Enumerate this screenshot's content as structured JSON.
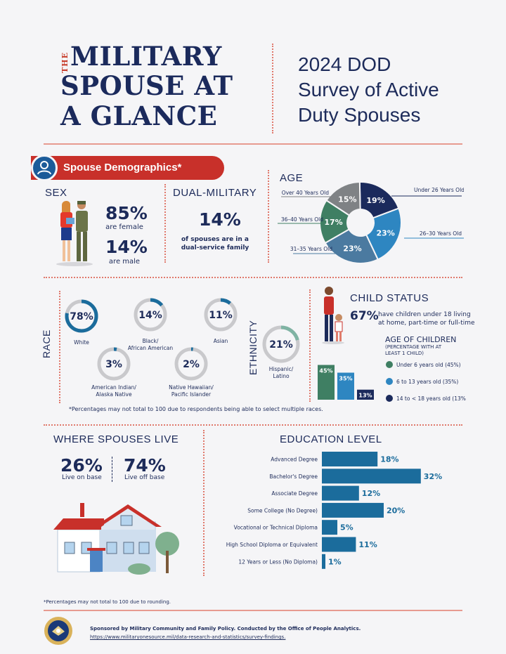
{
  "header": {
    "the": "THE",
    "title_lines": [
      "MILITARY",
      "SPOUSE AT",
      "A GLANCE"
    ],
    "survey_lines": [
      "2024 DOD",
      "Survey of Active",
      "Duty Spouses"
    ]
  },
  "demographics": {
    "section_title": "Spouse Demographics*",
    "sex": {
      "label": "SEX",
      "female_pct": "85%",
      "female_text": "are female",
      "male_pct": "14%",
      "male_text": "are male"
    },
    "dual_military": {
      "label": "DUAL-MILITARY",
      "pct": "14%",
      "text_line1": "of spouses are in a",
      "text_line2": "dual-service family"
    },
    "age": {
      "label": "AGE"
    }
  },
  "race": {
    "label": "RACE",
    "footnote": "*Percentages may not total to 100 due to respondents being able to select multiple races."
  },
  "ethnicity": {
    "label": "ETHNICITY"
  },
  "child_status": {
    "label": "CHILD STATUS",
    "pct": "67%",
    "text_line1": "have children under 18 living",
    "text_line2": "at home, part-time or full-time",
    "age_title": "AGE OF CHILDREN",
    "age_subtitle_line1": "(PERCENTAGE WITH AT",
    "age_subtitle_line2": "LEAST 1 CHILD)"
  },
  "where_live": {
    "label": "WHERE SPOUSES LIVE",
    "on_base_pct": "26%",
    "on_base_text": "Live on base",
    "off_base_pct": "74%",
    "off_base_text": "Live off base"
  },
  "education": {
    "label": "EDUCATION  LEVEL"
  },
  "footer": {
    "rounding_note": "*Percentages may not total to 100 due to rounding.",
    "sponsor": "Sponsored by Military Community and Family Policy. Conducted by the Office of People Analytics.",
    "url": "https://www.militaryonesource.mil/data-research-and-statistics/survey-findings."
  },
  "colors": {
    "navy": "#1d2b5a",
    "red": "#c8302a",
    "blue": "#1b6c9c",
    "teal_green": "#3f7f63",
    "light_blue": "#2e86c1",
    "grey": "#808285"
  },
  "chart_data": [
    {
      "type": "pie",
      "title": "AGE",
      "categories": [
        "Under 26 Years Old",
        "26–30 Years Old",
        "31–35 Years Old",
        "36–40 Years Old",
        "Over 40 Years Old"
      ],
      "values": [
        19,
        23,
        23,
        17,
        15
      ],
      "colors": [
        "#1b2a5c",
        "#2e86c1",
        "#4b7aa0",
        "#3f7f63",
        "#7f8285"
      ]
    },
    {
      "type": "bar",
      "title": "RACE",
      "categories": [
        "White",
        "Black/African American",
        "Asian",
        "American Indian/ Alaska Native",
        "Native Hawaiian/ Pacific Islander"
      ],
      "values": [
        78,
        14,
        11,
        3,
        2
      ],
      "labels": [
        "78%",
        "14%",
        "11%",
        "3%",
        "2%"
      ]
    },
    {
      "type": "bar",
      "title": "ETHNICITY",
      "categories": [
        "Hispanic/Latino"
      ],
      "values": [
        21
      ],
      "labels": [
        "21%"
      ]
    },
    {
      "type": "bar",
      "title": "AGE OF CHILDREN",
      "categories": [
        "Under 6 years old (45%)",
        "6 to 13 years old (35%)",
        "14 to < 18 years old (13%)"
      ],
      "values": [
        45,
        35,
        13
      ],
      "labels": [
        "45%",
        "35%",
        "13%"
      ],
      "colors": [
        "#3f7f63",
        "#2e86c1",
        "#1b2a5c"
      ]
    },
    {
      "type": "bar",
      "title": "EDUCATION  LEVEL",
      "categories": [
        "Advanced Degree",
        "Bachelor's Degree",
        "Associate Degree",
        "Some College (No Degree)",
        "Vocational or Technical Diploma",
        "High School Diploma or Equivalent",
        "12 Years or Less (No Diploma)"
      ],
      "values": [
        18,
        32,
        12,
        20,
        5,
        11,
        1
      ],
      "labels": [
        "18%",
        "32%",
        "12%",
        "20%",
        "5%",
        "11%",
        "1%"
      ]
    }
  ]
}
